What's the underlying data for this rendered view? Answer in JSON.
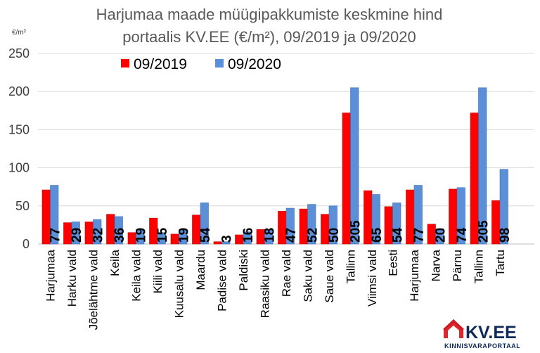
{
  "chart_data": {
    "type": "bar",
    "title": "Harjumaa maade müügipakkumiste keskmine hind",
    "subtitle": "portaalis KV.EE (€/m²), 09/2019 ja 09/2020",
    "ylabel": "€/m²",
    "ylim": [
      0,
      250
    ],
    "yticks": [
      "0",
      "50",
      "100",
      "150",
      "200",
      "250"
    ],
    "grid": true,
    "legend_position": "top-center",
    "groups": [
      {
        "categories": [
          "Harjumaa",
          "Harku vald",
          "Jõelähtme vald",
          "Keila",
          "Keila vald",
          "Kiili vald",
          "Kuusalu vald",
          "Maardu",
          "Padise vald",
          "Paldiski",
          "Raasiku vald",
          "Rae vald",
          "Saku vald",
          "Saue vald",
          "Tallinn",
          "Viimsi vald"
        ],
        "series": [
          {
            "name": "09/2019",
            "color": "#ff0000",
            "values": [
              71,
              28,
              29,
              39,
              15,
              34,
              13,
              38,
              3,
              12,
              19,
              43,
              46,
              39,
              172,
              70
            ]
          },
          {
            "name": "09/2020",
            "color": "#5b8fd8",
            "values": [
              77,
              29,
              32,
              36,
              19,
              15,
              19,
              54,
              3,
              16,
              18,
              47,
              52,
              50,
              205,
              65
            ]
          }
        ],
        "labels": [
          "77",
          "29",
          "32",
          "36",
          "19",
          "15",
          "19",
          "54",
          "3",
          "16",
          "18",
          "47",
          "52",
          "50",
          "205",
          "65"
        ]
      },
      {
        "categories": [
          "Eesti",
          "Harjumaa",
          "Narva",
          "Pärnu",
          "Tallinn",
          "Tartu"
        ],
        "series": [
          {
            "name": "09/2019",
            "color": "#ff0000",
            "values": [
              49,
              71,
              26,
              72,
              172,
              57
            ]
          },
          {
            "name": "09/2020",
            "color": "#5b8fd8",
            "values": [
              54,
              77,
              20,
              74,
              205,
              98
            ]
          }
        ],
        "labels": [
          "54",
          "77",
          "20",
          "74",
          "205",
          "98"
        ]
      }
    ]
  },
  "logo": {
    "name": "KV.EE",
    "subtitle": "KINNISVARAPORTAAL"
  }
}
